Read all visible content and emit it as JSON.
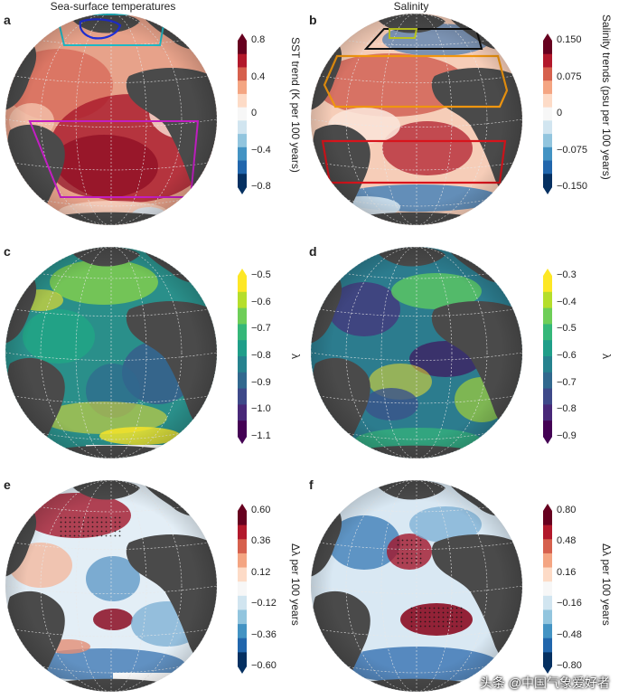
{
  "columns": {
    "left_title": "Sea-surface temperatures",
    "right_title": "Salinity"
  },
  "panels": [
    {
      "letter": "a",
      "cbar_label": "SST trend (K per 100 years)",
      "ticks": [
        "0.8",
        "0.4",
        "0",
        "−0.4",
        "−0.8"
      ],
      "colormap": "RdBu_r",
      "arrows": "both"
    },
    {
      "letter": "b",
      "cbar_label": "Salinity trends (psu per 100 years)",
      "ticks": [
        "0.150",
        "0.075",
        "0",
        "−0.075",
        "−0.150"
      ],
      "colormap": "RdBu_r",
      "arrows": "both"
    },
    {
      "letter": "c",
      "cbar_label": "λ",
      "ticks": [
        "−0.5",
        "−0.6",
        "−0.7",
        "−0.8",
        "−0.9",
        "−1.0",
        "−1.1"
      ],
      "colormap": "viridis",
      "arrows": "both"
    },
    {
      "letter": "d",
      "cbar_label": "λ",
      "ticks": [
        "−0.3",
        "−0.4",
        "−0.5",
        "−0.6",
        "−0.7",
        "−0.8",
        "−0.9"
      ],
      "colormap": "viridis",
      "arrows": "both"
    },
    {
      "letter": "e",
      "cbar_label": "Δλ per 100 years",
      "ticks": [
        "0.60",
        "0.36",
        "0.12",
        "−0.12",
        "−0.36",
        "−0.60"
      ],
      "colormap": "RdBu_r",
      "arrows": "both"
    },
    {
      "letter": "f",
      "cbar_label": "Δλ per 100 years",
      "ticks": [
        "0.80",
        "0.48",
        "0.16",
        "−0.16",
        "−0.48",
        "−0.80"
      ],
      "colormap": "RdBu_r",
      "arrows": "both"
    }
  ],
  "colors": {
    "land": "#4a4a4a",
    "cyan_box": "#1fb8c4",
    "blue_region": "#1f2fd6",
    "magenta_box": "#c21ec2",
    "orange_box": "#f0960f",
    "yellow_box": "#b8c21e",
    "black_box": "#111111",
    "red_box": "#d8141c"
  },
  "watermark": "头条 @中国气象爱好者"
}
